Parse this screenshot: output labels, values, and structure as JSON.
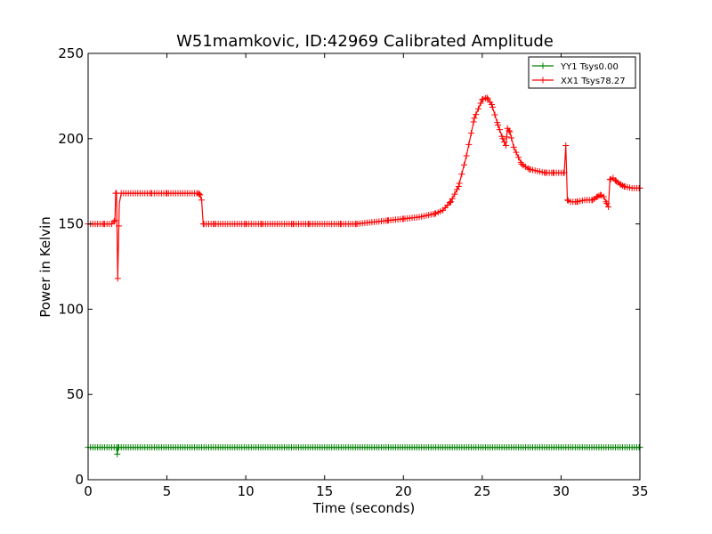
{
  "chart_data": {
    "type": "line",
    "title": "W51mamkovic, ID:42969 Calibrated Amplitude",
    "xlabel": "Time (seconds)",
    "ylabel": "Power in Kelvin",
    "xlim": [
      0,
      35
    ],
    "ylim": [
      0,
      250
    ],
    "xticks": [
      0,
      5,
      10,
      15,
      20,
      25,
      30,
      35
    ],
    "yticks": [
      0,
      50,
      100,
      150,
      200,
      250
    ],
    "grid": false,
    "legend_position": "top-right",
    "marker": "plus",
    "series": [
      {
        "name": "YY1 Tsys0.00",
        "color": "#008000",
        "points": [
          [
            0,
            19
          ],
          [
            1.8,
            19
          ],
          [
            1.85,
            15
          ],
          [
            1.9,
            19
          ],
          [
            35,
            19
          ]
        ]
      },
      {
        "name": "XX1 Tsys78.27",
        "color": "#ff0000",
        "points": [
          [
            0,
            150
          ],
          [
            1.0,
            150
          ],
          [
            1.5,
            150
          ],
          [
            1.7,
            152
          ],
          [
            1.75,
            168
          ],
          [
            1.8,
            168
          ],
          [
            1.88,
            118
          ],
          [
            1.98,
            162
          ],
          [
            2.1,
            168
          ],
          [
            3,
            168
          ],
          [
            4,
            168
          ],
          [
            5,
            168
          ],
          [
            6,
            168
          ],
          [
            7,
            168
          ],
          [
            7.1,
            167
          ],
          [
            7.2,
            164
          ],
          [
            7.3,
            150
          ],
          [
            8,
            150
          ],
          [
            9,
            150
          ],
          [
            10,
            150
          ],
          [
            11,
            150
          ],
          [
            12,
            150
          ],
          [
            13,
            150
          ],
          [
            14,
            150
          ],
          [
            15,
            150
          ],
          [
            16,
            150
          ],
          [
            17,
            150
          ],
          [
            18,
            151
          ],
          [
            19,
            152
          ],
          [
            20,
            153
          ],
          [
            21,
            154
          ],
          [
            22,
            156
          ],
          [
            22.5,
            158
          ],
          [
            23,
            163
          ],
          [
            23.5,
            172
          ],
          [
            24,
            190
          ],
          [
            24.5,
            212
          ],
          [
            25,
            223
          ],
          [
            25.3,
            224
          ],
          [
            25.6,
            220
          ],
          [
            26,
            208
          ],
          [
            26.3,
            200
          ],
          [
            26.5,
            196
          ],
          [
            26.6,
            206
          ],
          [
            26.75,
            204
          ],
          [
            27,
            195
          ],
          [
            27.5,
            185
          ],
          [
            28,
            182
          ],
          [
            28.5,
            181
          ],
          [
            29,
            180
          ],
          [
            29.5,
            180
          ],
          [
            30,
            180
          ],
          [
            30.2,
            180
          ],
          [
            30.3,
            196
          ],
          [
            30.4,
            164
          ],
          [
            30.6,
            163
          ],
          [
            31,
            163
          ],
          [
            31.5,
            164
          ],
          [
            32,
            164
          ],
          [
            32.3,
            166
          ],
          [
            32.5,
            167
          ],
          [
            32.7,
            166
          ],
          [
            32.9,
            162
          ],
          [
            33.0,
            160
          ],
          [
            33.1,
            176
          ],
          [
            33.3,
            177
          ],
          [
            33.5,
            175
          ],
          [
            33.8,
            173
          ],
          [
            34,
            172
          ],
          [
            34.5,
            171
          ],
          [
            35,
            171
          ]
        ]
      }
    ]
  }
}
